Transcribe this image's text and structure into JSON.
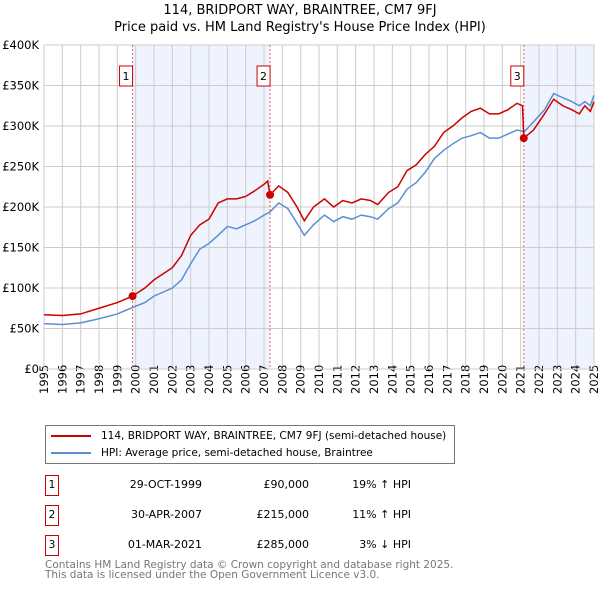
{
  "title": "114, BRIDPORT WAY, BRAINTREE, CM7 9FJ",
  "subtitle": "Price paid vs. HM Land Registry's House Price Index (HPI)",
  "chart_data": {
    "type": "line",
    "ylim": [
      0,
      400000
    ],
    "xlim": [
      1995,
      2025
    ],
    "yticks": [
      {
        "v": 0,
        "label": "£0"
      },
      {
        "v": 50000,
        "label": "£50K"
      },
      {
        "v": 100000,
        "label": "£100K"
      },
      {
        "v": 150000,
        "label": "£150K"
      },
      {
        "v": 200000,
        "label": "£200K"
      },
      {
        "v": 250000,
        "label": "£250K"
      },
      {
        "v": 300000,
        "label": "£300K"
      },
      {
        "v": 350000,
        "label": "£350K"
      },
      {
        "v": 400000,
        "label": "£400K"
      }
    ],
    "xticks": [
      "1995",
      "1996",
      "1997",
      "1998",
      "1999",
      "2000",
      "2001",
      "2002",
      "2003",
      "2004",
      "2005",
      "2006",
      "2007",
      "2008",
      "2009",
      "2010",
      "2011",
      "2012",
      "2013",
      "2014",
      "2015",
      "2016",
      "2017",
      "2018",
      "2019",
      "2020",
      "2021",
      "2022",
      "2023",
      "2024",
      "2025"
    ],
    "grid": true,
    "shaded": [
      [
        1999.83,
        2007.33
      ],
      [
        2021.17,
        2025
      ]
    ],
    "series": [
      {
        "name": "114, BRIDPORT WAY, BRAINTREE, CM7 9FJ (semi-detached house)",
        "color": "#cc0000",
        "x": [
          1995,
          1996,
          1997,
          1998,
          1999,
          1999.83,
          2000.5,
          2001,
          2002,
          2002.5,
          2003,
          2003.5,
          2004,
          2004.5,
          2005,
          2005.5,
          2006,
          2006.5,
          2007,
          2007.2,
          2007.33,
          2007.8,
          2008.3,
          2008.8,
          2009.2,
          2009.7,
          2010.3,
          2010.8,
          2011.3,
          2011.8,
          2012.3,
          2012.8,
          2013.2,
          2013.8,
          2014.3,
          2014.8,
          2015.3,
          2015.8,
          2016.3,
          2016.8,
          2017.3,
          2017.8,
          2018.3,
          2018.8,
          2019.3,
          2019.8,
          2020.3,
          2020.8,
          2021.1,
          2021.17,
          2021.7,
          2022.3,
          2022.8,
          2023.3,
          2023.8,
          2024.2,
          2024.5,
          2024.8,
          2025
        ],
        "y": [
          67000,
          66000,
          68000,
          75000,
          82000,
          90000,
          100000,
          110000,
          125000,
          140000,
          165000,
          178000,
          185000,
          205000,
          210000,
          210000,
          213000,
          220000,
          228000,
          232000,
          215000,
          226000,
          218000,
          200000,
          183000,
          200000,
          210000,
          200000,
          208000,
          205000,
          210000,
          208000,
          203000,
          218000,
          225000,
          245000,
          252000,
          265000,
          275000,
          292000,
          300000,
          310000,
          318000,
          322000,
          315000,
          315000,
          320000,
          328000,
          325000,
          285000,
          295000,
          315000,
          333000,
          325000,
          320000,
          315000,
          325000,
          318000,
          330000
        ]
      },
      {
        "name": "HPI: Average price, semi-detached house, Braintree",
        "color": "#5b8fd4",
        "x": [
          1995,
          1996,
          1997,
          1998,
          1999,
          1999.83,
          2000.5,
          2001,
          2002,
          2002.5,
          2003,
          2003.5,
          2004,
          2004.5,
          2005,
          2005.5,
          2006,
          2006.5,
          2007,
          2007.33,
          2007.8,
          2008.3,
          2008.8,
          2009.2,
          2009.7,
          2010.3,
          2010.8,
          2011.3,
          2011.8,
          2012.3,
          2012.8,
          2013.2,
          2013.8,
          2014.3,
          2014.8,
          2015.3,
          2015.8,
          2016.3,
          2016.8,
          2017.3,
          2017.8,
          2018.3,
          2018.8,
          2019.3,
          2019.8,
          2020.3,
          2020.8,
          2021.2,
          2021.7,
          2022.3,
          2022.8,
          2023.3,
          2023.8,
          2024.2,
          2024.5,
          2024.8,
          2025
        ],
        "y": [
          56000,
          55000,
          57000,
          62000,
          68000,
          76000,
          82000,
          90000,
          100000,
          110000,
          130000,
          148000,
          155000,
          165000,
          176000,
          173000,
          178000,
          183000,
          190000,
          194000,
          205000,
          198000,
          180000,
          165000,
          178000,
          190000,
          182000,
          188000,
          185000,
          190000,
          188000,
          185000,
          198000,
          205000,
          222000,
          230000,
          243000,
          260000,
          270000,
          278000,
          285000,
          288000,
          292000,
          285000,
          285000,
          290000,
          295000,
          293000,
          305000,
          320000,
          340000,
          335000,
          330000,
          325000,
          330000,
          325000,
          338000
        ]
      }
    ],
    "sales": [
      {
        "n": "1",
        "x": 1999.83,
        "y": 90000
      },
      {
        "n": "2",
        "x": 2007.33,
        "y": 215000
      },
      {
        "n": "3",
        "x": 2021.17,
        "y": 285000
      }
    ]
  },
  "table": [
    {
      "n": "1",
      "date": "29-OCT-1999",
      "price": "£90,000",
      "hpi": "19% ↑ HPI"
    },
    {
      "n": "2",
      "date": "30-APR-2007",
      "price": "£215,000",
      "hpi": "11% ↑ HPI"
    },
    {
      "n": "3",
      "date": "01-MAR-2021",
      "price": "£285,000",
      "hpi": "3% ↓ HPI"
    }
  ],
  "footer": [
    "Contains HM Land Registry data © Crown copyright and database right 2025.",
    "This data is licensed under the Open Government Licence v3.0."
  ]
}
